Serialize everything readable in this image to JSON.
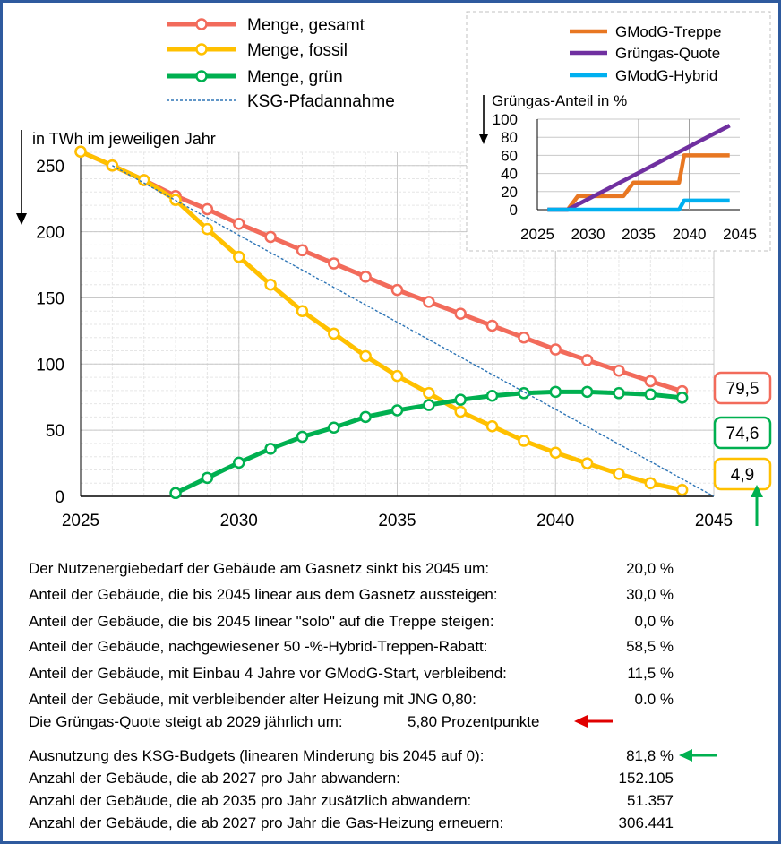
{
  "chart_data": [
    {
      "type": "line",
      "ylabel": "in TWh im jeweiligen Jahr",
      "xlim": [
        2025,
        2045
      ],
      "ylim": [
        0,
        260
      ],
      "xticks": [
        2025,
        2030,
        2035,
        2040,
        2045
      ],
      "yticks": [
        0,
        50,
        100,
        150,
        200,
        250
      ],
      "grid": true,
      "legend": "top-left",
      "series": [
        {
          "name": "Menge, gesamt",
          "color": "#f26b5b",
          "marker": "circle",
          "x": [
            2025,
            2026,
            2027,
            2028,
            2029,
            2030,
            2031,
            2032,
            2033,
            2034,
            2035,
            2036,
            2037,
            2038,
            2039,
            2040,
            2041,
            2042,
            2043,
            2044
          ],
          "values": [
            260.5,
            250,
            239,
            227,
            217,
            206,
            196,
            186,
            176,
            166,
            156,
            147,
            138,
            129,
            120,
            111,
            103,
            95,
            87,
            79.5
          ]
        },
        {
          "name": "Menge, fossil",
          "color": "#ffc000",
          "marker": "circle",
          "x": [
            2025,
            2026,
            2027,
            2028,
            2029,
            2030,
            2031,
            2032,
            2033,
            2034,
            2035,
            2036,
            2037,
            2038,
            2039,
            2040,
            2041,
            2042,
            2043,
            2044
          ],
          "values": [
            260.5,
            250,
            239,
            224,
            202,
            181,
            160,
            140,
            123,
            106,
            91,
            78,
            64,
            53,
            42,
            33,
            25,
            17,
            10,
            4.9
          ]
        },
        {
          "name": "Menge, grün",
          "color": "#00b050",
          "marker": "circle",
          "x": [
            2028,
            2029,
            2030,
            2031,
            2032,
            2033,
            2034,
            2035,
            2036,
            2037,
            2038,
            2039,
            2040,
            2041,
            2042,
            2043,
            2044
          ],
          "values": [
            2.5,
            14,
            25.5,
            36,
            45,
            52,
            60,
            65,
            69,
            73,
            76,
            78,
            79,
            79,
            78,
            77,
            74.6
          ]
        },
        {
          "name": "KSG-Pfadannahme",
          "color": "#2e75b6",
          "marker": "none",
          "dashed": true,
          "x": [
            2026,
            2045
          ],
          "values": [
            250,
            0
          ]
        }
      ],
      "callouts": [
        {
          "label": "79,5",
          "color": "#f26b5b"
        },
        {
          "label": "74,6",
          "color": "#00b050"
        },
        {
          "label": "4,9",
          "color": "#ffc000"
        }
      ]
    },
    {
      "type": "line",
      "ylabel": "Grüngas-Anteil in %",
      "xlim": [
        2025,
        2045
      ],
      "ylim": [
        0,
        100
      ],
      "xticks": [
        2025,
        2030,
        2035,
        2040,
        2045
      ],
      "yticks": [
        0,
        20,
        40,
        60,
        80,
        100
      ],
      "grid": true,
      "legend": "top",
      "series": [
        {
          "name": "GModG-Treppe",
          "color": "#e87722",
          "x": [
            2026,
            2028,
            2029,
            2033.5,
            2034.5,
            2039,
            2039.5,
            2044
          ],
          "values": [
            0,
            0,
            15,
            15,
            30,
            30,
            60,
            60
          ]
        },
        {
          "name": "Grüngas-Quote",
          "color": "#7030a0",
          "x": [
            2026,
            2028,
            2044
          ],
          "values": [
            0,
            0,
            93
          ]
        },
        {
          "name": "GModG-Hybrid",
          "color": "#00b0f0",
          "x": [
            2026,
            2039,
            2039.5,
            2044
          ],
          "values": [
            0,
            0,
            10,
            10
          ]
        }
      ]
    }
  ],
  "info_rows": [
    {
      "label": "Der Nutzenergiebedarf der Gebäude am Gasnetz sinkt bis 2045 um:",
      "value": "20,0 %"
    },
    {
      "label": "Anteil der Gebäude, die bis 2045 linear aus dem Gasnetz aussteigen:",
      "value": "30,0 %"
    },
    {
      "label": "Anteil der Gebäude, die bis 2045 linear \"solo\" auf die Treppe steigen:",
      "value": "0,0 %"
    },
    {
      "label": "Anteil der Gebäude, nachgewiesener 50 -%-Hybrid-Treppen-Rabatt:",
      "value": "58,5 %"
    },
    {
      "label": "Anteil der Gebäude, mit Einbau 4 Jahre vor GModG-Start, verbleibend:",
      "value": "11,5 %"
    },
    {
      "label": "Anteil der Gebäude, mit verbleibender alter Heizung mit JNG 0,80:",
      "value": "0.0 %"
    }
  ],
  "quota_row": {
    "label": "Die Grüngas-Quote steigt ab 2029 jährlich um:",
    "value": "5,80 Prozentpunkte"
  },
  "budget_rows": [
    {
      "label": "Ausnutzung des KSG-Budgets (linearen Minderung  bis 2045 auf 0):",
      "value": "81,8 %"
    },
    {
      "label": "Anzahl der Gebäude, die ab 2027  pro Jahr abwandern:",
      "value": "152.105"
    },
    {
      "label": "Anzahl der Gebäude, die ab 2035  pro Jahr zusätzlich abwandern:",
      "value": "51.357"
    },
    {
      "label": "Anzahl der Gebäude, die ab 2027  pro Jahr die Gas-Heizung erneuern:",
      "value": "306.441"
    }
  ],
  "arrow_colors": {
    "red": "#e00000",
    "green": "#00b050"
  }
}
